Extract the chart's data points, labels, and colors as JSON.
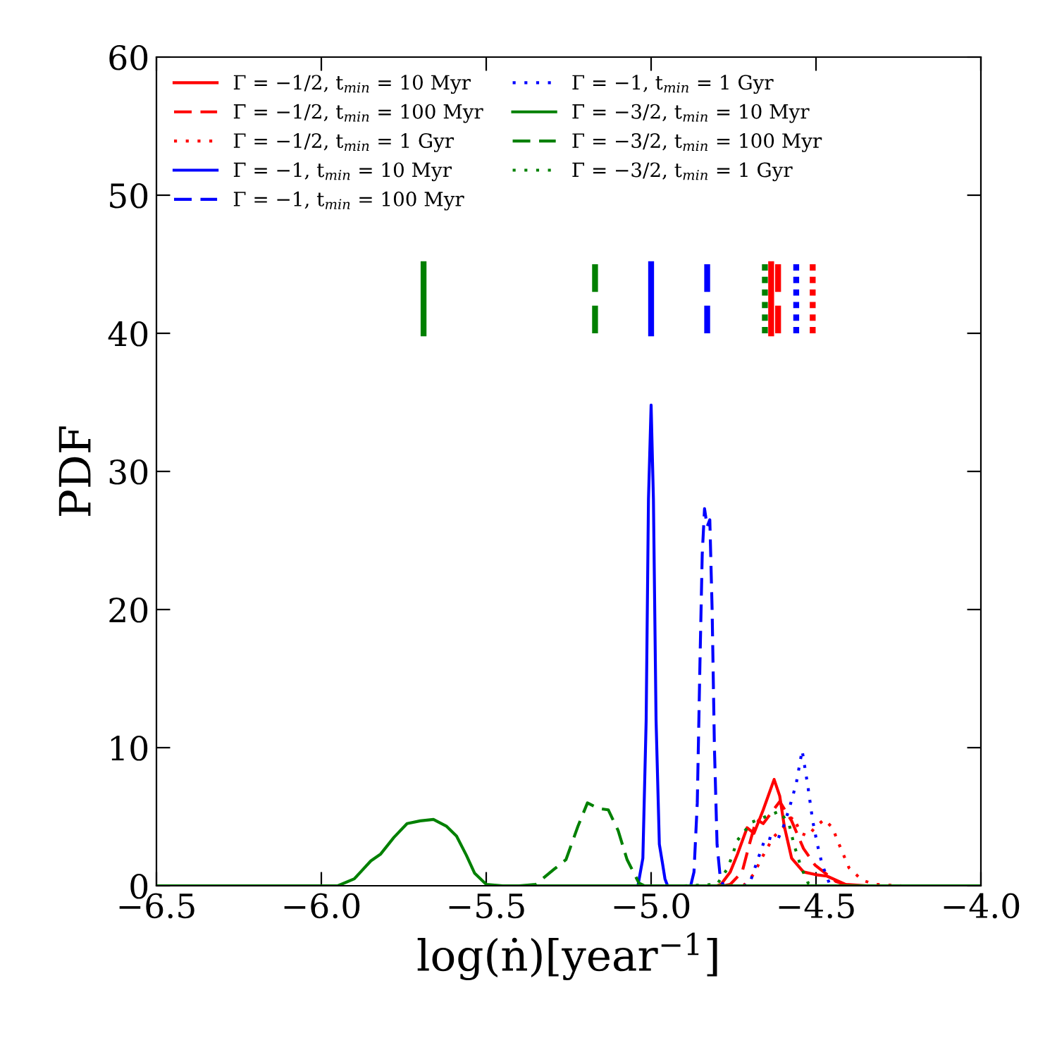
{
  "chart_data": {
    "type": "line",
    "xlabel": "log(ṅ)[year$^{−1}$]",
    "ylabel": "PDF",
    "xlim": [
      -6.5,
      -4.0
    ],
    "ylim": [
      0,
      60
    ],
    "xticks": [
      {
        "value": -6.5,
        "label": "−6.5"
      },
      {
        "value": -6.0,
        "label": "−6.0"
      },
      {
        "value": -5.5,
        "label": "−5.5"
      },
      {
        "value": -5.0,
        "label": "−5.0"
      },
      {
        "value": -4.5,
        "label": "−4.5"
      },
      {
        "value": -4.0,
        "label": "−4.0"
      }
    ],
    "yticks": [
      0,
      10,
      20,
      30,
      40,
      50,
      60
    ],
    "grid": false,
    "legend": "top left",
    "series": [
      {
        "name": "Γ = −1/2, t$_{min}$ = 10 Myr",
        "color": "#ff0000",
        "line_style": "solid",
        "x": [
          -4.8,
          -4.788,
          -4.76,
          -4.738,
          -4.709,
          -4.688,
          -4.66,
          -4.627,
          -4.61,
          -4.596,
          -4.574,
          -4.538,
          -4.5,
          -4.467,
          -4.41,
          -4.35
        ],
        "values": [
          0,
          0.1,
          1.0,
          2.3,
          4.2,
          3.8,
          5.5,
          7.7,
          6.5,
          4.3,
          2.0,
          1.0,
          0.8,
          0.7,
          0.1,
          0
        ]
      },
      {
        "name": "Γ = −1/2, t$_{min}$ = 100 Myr",
        "color": "#ff0000",
        "line_style": "dashed",
        "x": [
          -4.78,
          -4.76,
          -4.724,
          -4.702,
          -4.681,
          -4.66,
          -4.635,
          -4.61,
          -4.574,
          -4.538,
          -4.503,
          -4.439,
          -4.4
        ],
        "values": [
          0,
          0.1,
          1.0,
          3.0,
          4.8,
          4.5,
          5.3,
          6.1,
          4.7,
          2.7,
          1.5,
          0.3,
          0
        ]
      },
      {
        "name": "Γ = −1/2, t$_{min}$ = 1 Gyr",
        "color": "#ff0000",
        "line_style": "dotted",
        "x": [
          -4.72,
          -4.69,
          -4.66,
          -4.63,
          -4.6,
          -4.57,
          -4.545,
          -4.525,
          -4.5,
          -4.475,
          -4.45,
          -4.43,
          -4.4,
          -4.36,
          -4.32,
          -4.24
        ],
        "values": [
          0,
          0.8,
          2.2,
          3.5,
          4.2,
          5.0,
          3.8,
          3.6,
          4.3,
          4.8,
          4.2,
          3.0,
          1.3,
          0.4,
          0.1,
          0
        ]
      },
      {
        "name": "Γ = −1, t$_{min}$ = 10 Myr",
        "color": "#0000ff",
        "line_style": "solid",
        "x": [
          -5.04,
          -5.025,
          -5.015,
          -5.008,
          -5.0,
          -4.993,
          -4.985,
          -4.975,
          -4.966,
          -4.958,
          -4.95
        ],
        "values": [
          0,
          2,
          12,
          28,
          34.8,
          28,
          12,
          3,
          1.7,
          0.5,
          0
        ]
      },
      {
        "name": "Γ = −1, t$_{min}$ = 100 Myr",
        "color": "#0000ff",
        "line_style": "dashed",
        "x": [
          -4.88,
          -4.87,
          -4.86,
          -4.852,
          -4.845,
          -4.838,
          -4.83,
          -4.822,
          -4.815,
          -4.808,
          -4.8,
          -4.79,
          -4.78
        ],
        "values": [
          0,
          1,
          6,
          16,
          24,
          27.3,
          26,
          26.5,
          20,
          10,
          3,
          0.5,
          0
        ]
      },
      {
        "name": "Γ = −1, t$_{min}$ = 1 Gyr",
        "color": "#0000ff",
        "line_style": "dotted",
        "x": [
          -4.72,
          -4.702,
          -4.681,
          -4.653,
          -4.617,
          -4.6,
          -4.581,
          -4.56,
          -4.542,
          -4.524,
          -4.51,
          -4.496,
          -4.482,
          -4.46,
          -4.44
        ],
        "values": [
          0,
          0.1,
          1.6,
          3.5,
          3.3,
          4.2,
          5.6,
          7.4,
          9.8,
          7.1,
          4.7,
          3.0,
          1.6,
          0.2,
          0
        ]
      },
      {
        "name": "Γ = −3/2, t$_{min}$ = 10 Myr",
        "color": "#008000",
        "line_style": "solid",
        "x": [
          -6.5,
          -5.95,
          -5.9,
          -5.85,
          -5.82,
          -5.78,
          -5.74,
          -5.7,
          -5.66,
          -5.62,
          -5.59,
          -5.56,
          -5.535,
          -5.5,
          -5.45,
          -4.0
        ],
        "values": [
          0,
          0,
          0.5,
          1.8,
          2.3,
          3.5,
          4.5,
          4.7,
          4.8,
          4.3,
          3.6,
          2.2,
          0.9,
          0.1,
          0,
          0
        ]
      },
      {
        "name": "Γ = −3/2, t$_{min}$ = 100 Myr",
        "color": "#008000",
        "line_style": "dashed",
        "x": [
          -5.4,
          -5.35,
          -5.294,
          -5.258,
          -5.222,
          -5.193,
          -5.16,
          -5.13,
          -5.1,
          -5.073,
          -5.037,
          -5.02
        ],
        "values": [
          0,
          0.1,
          1.2,
          1.9,
          4.3,
          6.0,
          5.6,
          5.5,
          4.0,
          1.9,
          0.2,
          0
        ]
      },
      {
        "name": "Γ = −3/2, t$_{min}$ = 1 Gyr",
        "color": "#008000",
        "line_style": "dotted",
        "x": [
          -4.9,
          -4.8,
          -4.767,
          -4.738,
          -4.695,
          -4.653,
          -4.61,
          -4.581,
          -4.567,
          -4.546,
          -4.524,
          -4.5
        ],
        "values": [
          0,
          0.1,
          1.3,
          3.3,
          4.6,
          5.0,
          5.4,
          4.4,
          3.0,
          1.4,
          0.2,
          0
        ]
      },
      {
        "color": "#ff0000",
        "line_style": "solid",
        "x": [
          -4.636,
          -4.636
        ],
        "values": [
          40,
          45
        ]
      },
      {
        "color": "#ff0000",
        "line_style": "dashed",
        "x": [
          -4.615,
          -4.615
        ],
        "values": [
          40,
          45
        ]
      },
      {
        "color": "#ff0000",
        "line_style": "dotted",
        "x": [
          -4.51,
          -4.51
        ],
        "values": [
          40,
          45
        ]
      },
      {
        "color": "#0000ff",
        "line_style": "solid",
        "x": [
          -5.0,
          -5.0
        ],
        "values": [
          40,
          45
        ]
      },
      {
        "color": "#0000ff",
        "line_style": "dashed",
        "x": [
          -4.83,
          -4.83
        ],
        "values": [
          40,
          45
        ]
      },
      {
        "color": "#0000ff",
        "line_style": "dotted",
        "x": [
          -4.56,
          -4.56
        ],
        "values": [
          40,
          45
        ]
      },
      {
        "color": "#008000",
        "line_style": "solid",
        "x": [
          -5.69,
          -5.69
        ],
        "values": [
          40,
          45
        ]
      },
      {
        "color": "#008000",
        "line_style": "dashed",
        "x": [
          -5.17,
          -5.17
        ],
        "values": [
          40,
          45
        ]
      },
      {
        "color": "#008000",
        "line_style": "dotted",
        "x": [
          -4.655,
          -4.655
        ],
        "values": [
          40,
          45
        ]
      }
    ]
  }
}
